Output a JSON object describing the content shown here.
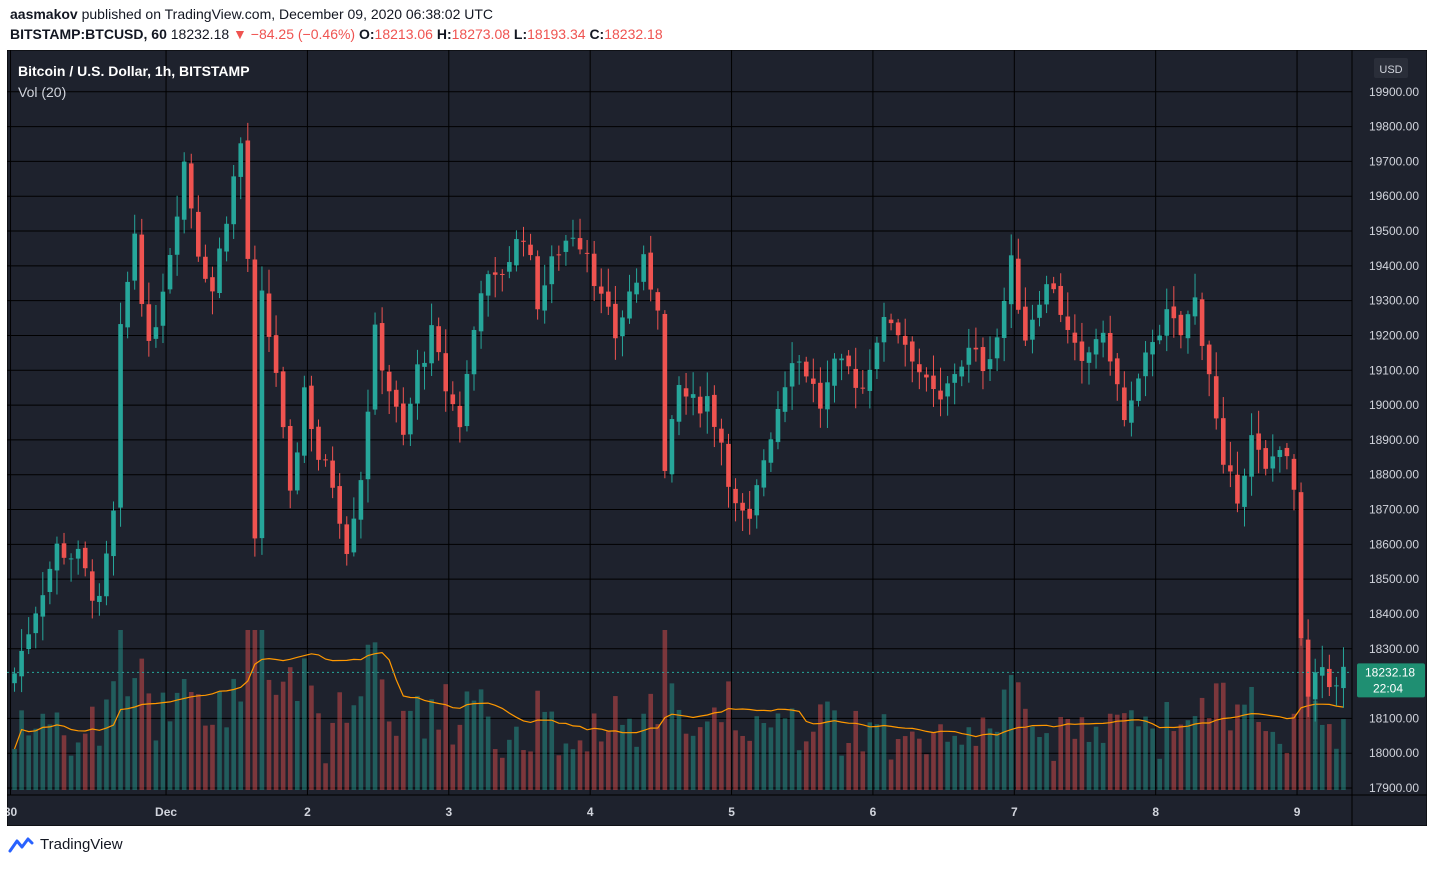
{
  "header": {
    "author": "aasmakov",
    "published_text": "published on TradingView.com, December 09, 2020 06:38:02 UTC",
    "symbol": "BITSTAMP:BTCUSD, 60",
    "last": "18232.18",
    "change": "▼ −84.25 (−0.46%)",
    "o_label": "O:",
    "o_val": "18213.06",
    "h_label": "H:",
    "h_val": "18273.08",
    "l_label": "L:",
    "l_val": "18193.34",
    "c_label": "C:",
    "c_val": "18232.18"
  },
  "footer": {
    "brand": "TradingView"
  },
  "colors": {
    "bg": "#1e222d",
    "grid": "#000000",
    "up": "#26a69a",
    "down": "#ef5350",
    "vol_ma": "#ff9800",
    "label_bg": "#1f8f72",
    "border": "#363a45"
  },
  "chart_data": {
    "type": "candlestick",
    "title": "Bitcoin / U.S. Dollar, 1h, BITSTAMP",
    "indicator": "Vol (20)",
    "currency": "USD",
    "ylim": [
      17880,
      20020
    ],
    "y_ticks": [
      "19900.00",
      "19800.00",
      "19700.00",
      "19600.00",
      "19500.00",
      "19400.00",
      "19300.00",
      "19200.00",
      "19100.00",
      "19000.00",
      "18900.00",
      "18800.00",
      "18700.00",
      "18600.00",
      "18500.00",
      "18400.00",
      "18300.00",
      "18100.00",
      "18000.00",
      "17900.00"
    ],
    "y_tick_values": [
      19900,
      19800,
      19700,
      19600,
      19500,
      19400,
      19300,
      19200,
      19100,
      19000,
      18900,
      18800,
      18700,
      18600,
      18500,
      18400,
      18300,
      18100,
      18000,
      17900
    ],
    "x_ticks": [
      {
        "label": "30",
        "index": 0
      },
      {
        "label": "Dec",
        "index": 22
      },
      {
        "label": "2",
        "index": 42
      },
      {
        "label": "3",
        "index": 62
      },
      {
        "label": "4",
        "index": 82
      },
      {
        "label": "5",
        "index": 102
      },
      {
        "label": "6",
        "index": 122
      },
      {
        "label": "7",
        "index": 142
      },
      {
        "label": "8",
        "index": 162
      },
      {
        "label": "9",
        "index": 182
      }
    ],
    "last_price": "18232.18",
    "countdown": "22:04",
    "candles_hint": "hourly OHLC from Nov 30 to Dec 9, 2020",
    "anchors": [
      [
        0,
        18230
      ],
      [
        3,
        18420
      ],
      [
        6,
        18590
      ],
      [
        9,
        18560
      ],
      [
        12,
        18420
      ],
      [
        14,
        18680
      ],
      [
        15,
        19200
      ],
      [
        17,
        19500
      ],
      [
        19,
        19150
      ],
      [
        22,
        19450
      ],
      [
        24,
        19700
      ],
      [
        26,
        19450
      ],
      [
        28,
        19330
      ],
      [
        30,
        19550
      ],
      [
        32,
        19750
      ],
      [
        33,
        19420
      ],
      [
        34,
        18590
      ],
      [
        35,
        19300
      ],
      [
        37,
        19100
      ],
      [
        39,
        18720
      ],
      [
        41,
        19050
      ],
      [
        43,
        18850
      ],
      [
        45,
        18780
      ],
      [
        47,
        18600
      ],
      [
        49,
        18800
      ],
      [
        51,
        19200
      ],
      [
        53,
        19050
      ],
      [
        55,
        18900
      ],
      [
        57,
        19100
      ],
      [
        59,
        19200
      ],
      [
        61,
        19050
      ],
      [
        63,
        18950
      ],
      [
        66,
        19350
      ],
      [
        68,
        19350
      ],
      [
        72,
        19500
      ],
      [
        74,
        19300
      ],
      [
        77,
        19450
      ],
      [
        79,
        19500
      ],
      [
        81,
        19450
      ],
      [
        83,
        19300
      ],
      [
        85,
        19200
      ],
      [
        87,
        19320
      ],
      [
        89,
        19400
      ],
      [
        91,
        19300
      ],
      [
        92,
        18800
      ],
      [
        94,
        19050
      ],
      [
        96,
        19000
      ],
      [
        98,
        19020
      ],
      [
        100,
        18900
      ],
      [
        102,
        18700
      ],
      [
        104,
        18650
      ],
      [
        106,
        18850
      ],
      [
        108,
        19000
      ],
      [
        110,
        19150
      ],
      [
        112,
        19100
      ],
      [
        114,
        19000
      ],
      [
        116,
        19100
      ],
      [
        118,
        19100
      ],
      [
        120,
        19050
      ],
      [
        122,
        19200
      ],
      [
        124,
        19250
      ],
      [
        127,
        19150
      ],
      [
        129,
        19050
      ],
      [
        131,
        19000
      ],
      [
        133,
        19100
      ],
      [
        135,
        19150
      ],
      [
        137,
        19120
      ],
      [
        139,
        19200
      ],
      [
        141,
        19400
      ],
      [
        143,
        19200
      ],
      [
        145,
        19320
      ],
      [
        147,
        19350
      ],
      [
        149,
        19200
      ],
      [
        151,
        19100
      ],
      [
        153,
        19200
      ],
      [
        155,
        19150
      ],
      [
        157,
        18950
      ],
      [
        159,
        19050
      ],
      [
        161,
        19200
      ],
      [
        163,
        19250
      ],
      [
        165,
        19200
      ],
      [
        167,
        19300
      ],
      [
        169,
        19100
      ],
      [
        171,
        18800
      ],
      [
        173,
        18750
      ],
      [
        175,
        18900
      ],
      [
        177,
        18800
      ],
      [
        179,
        18900
      ],
      [
        181,
        18750
      ],
      [
        182,
        18300
      ],
      [
        183,
        18150
      ],
      [
        185,
        18250
      ],
      [
        187,
        18180
      ],
      [
        188,
        18232
      ]
    ],
    "volume_ma_hint": "orange line: ~17960 baseline, rises to ~18040 around Dec 1, back to ~17940 after Dec 5"
  }
}
